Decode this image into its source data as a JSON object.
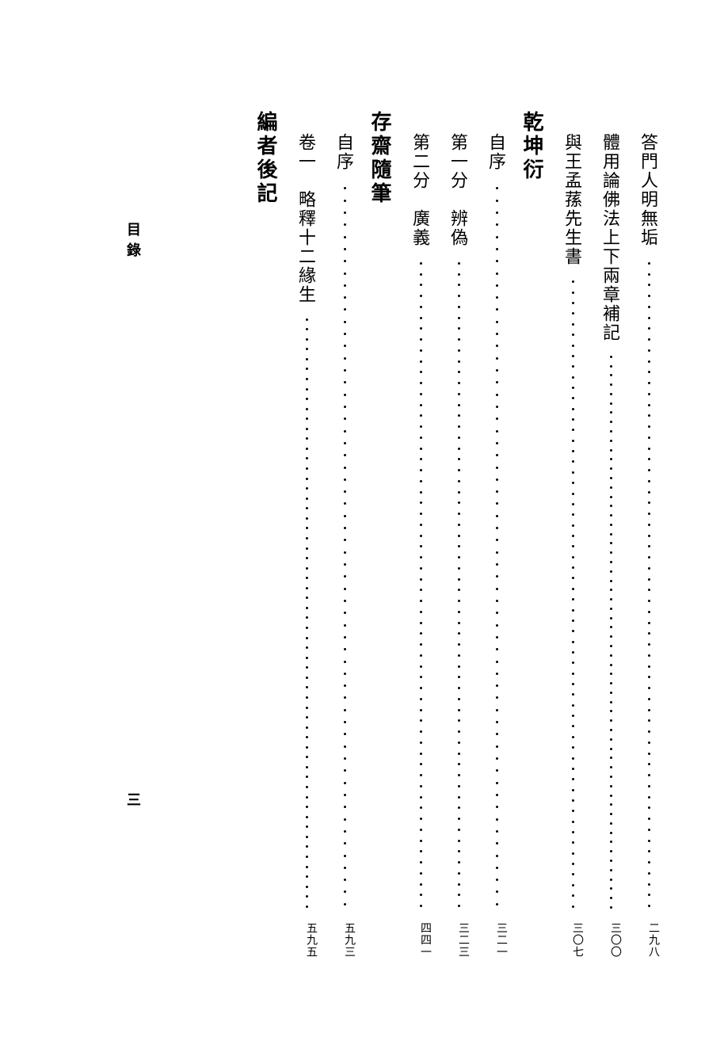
{
  "background_color": "#ffffff",
  "text_color": "#000000",
  "font_family": "SimSun",
  "body_fontsize": 22,
  "heading_fontsize": 26,
  "pagenum_fontsize": 14,
  "dot_count": 60,
  "sidebar": {
    "label": "目錄",
    "folio": "三"
  },
  "columns": [
    {
      "type": "entry",
      "indent": 1,
      "text": "答門人明無垢",
      "page": "二九八"
    },
    {
      "type": "entry",
      "indent": 1,
      "text": "體用論佛法上下兩章補記",
      "page": "三〇〇"
    },
    {
      "type": "entry",
      "indent": 1,
      "text": "與王孟蓀先生書",
      "page": "三〇七"
    },
    {
      "type": "heading",
      "text": "乾坤衍"
    },
    {
      "type": "entry",
      "indent": 1,
      "text": "自序",
      "page": "三二一"
    },
    {
      "type": "entry",
      "indent": 1,
      "text": "第一分　辨偽",
      "page": "三二三"
    },
    {
      "type": "entry",
      "indent": 1,
      "text": "第二分　廣義",
      "page": "四四一"
    },
    {
      "type": "heading",
      "text": "存齋隨筆"
    },
    {
      "type": "entry",
      "indent": 1,
      "text": "自序",
      "page": "五九三"
    },
    {
      "type": "entry",
      "indent": 1,
      "text": "卷一　略釋十二緣生",
      "page": "五九五"
    },
    {
      "type": "heading",
      "text": "編者後記"
    }
  ]
}
